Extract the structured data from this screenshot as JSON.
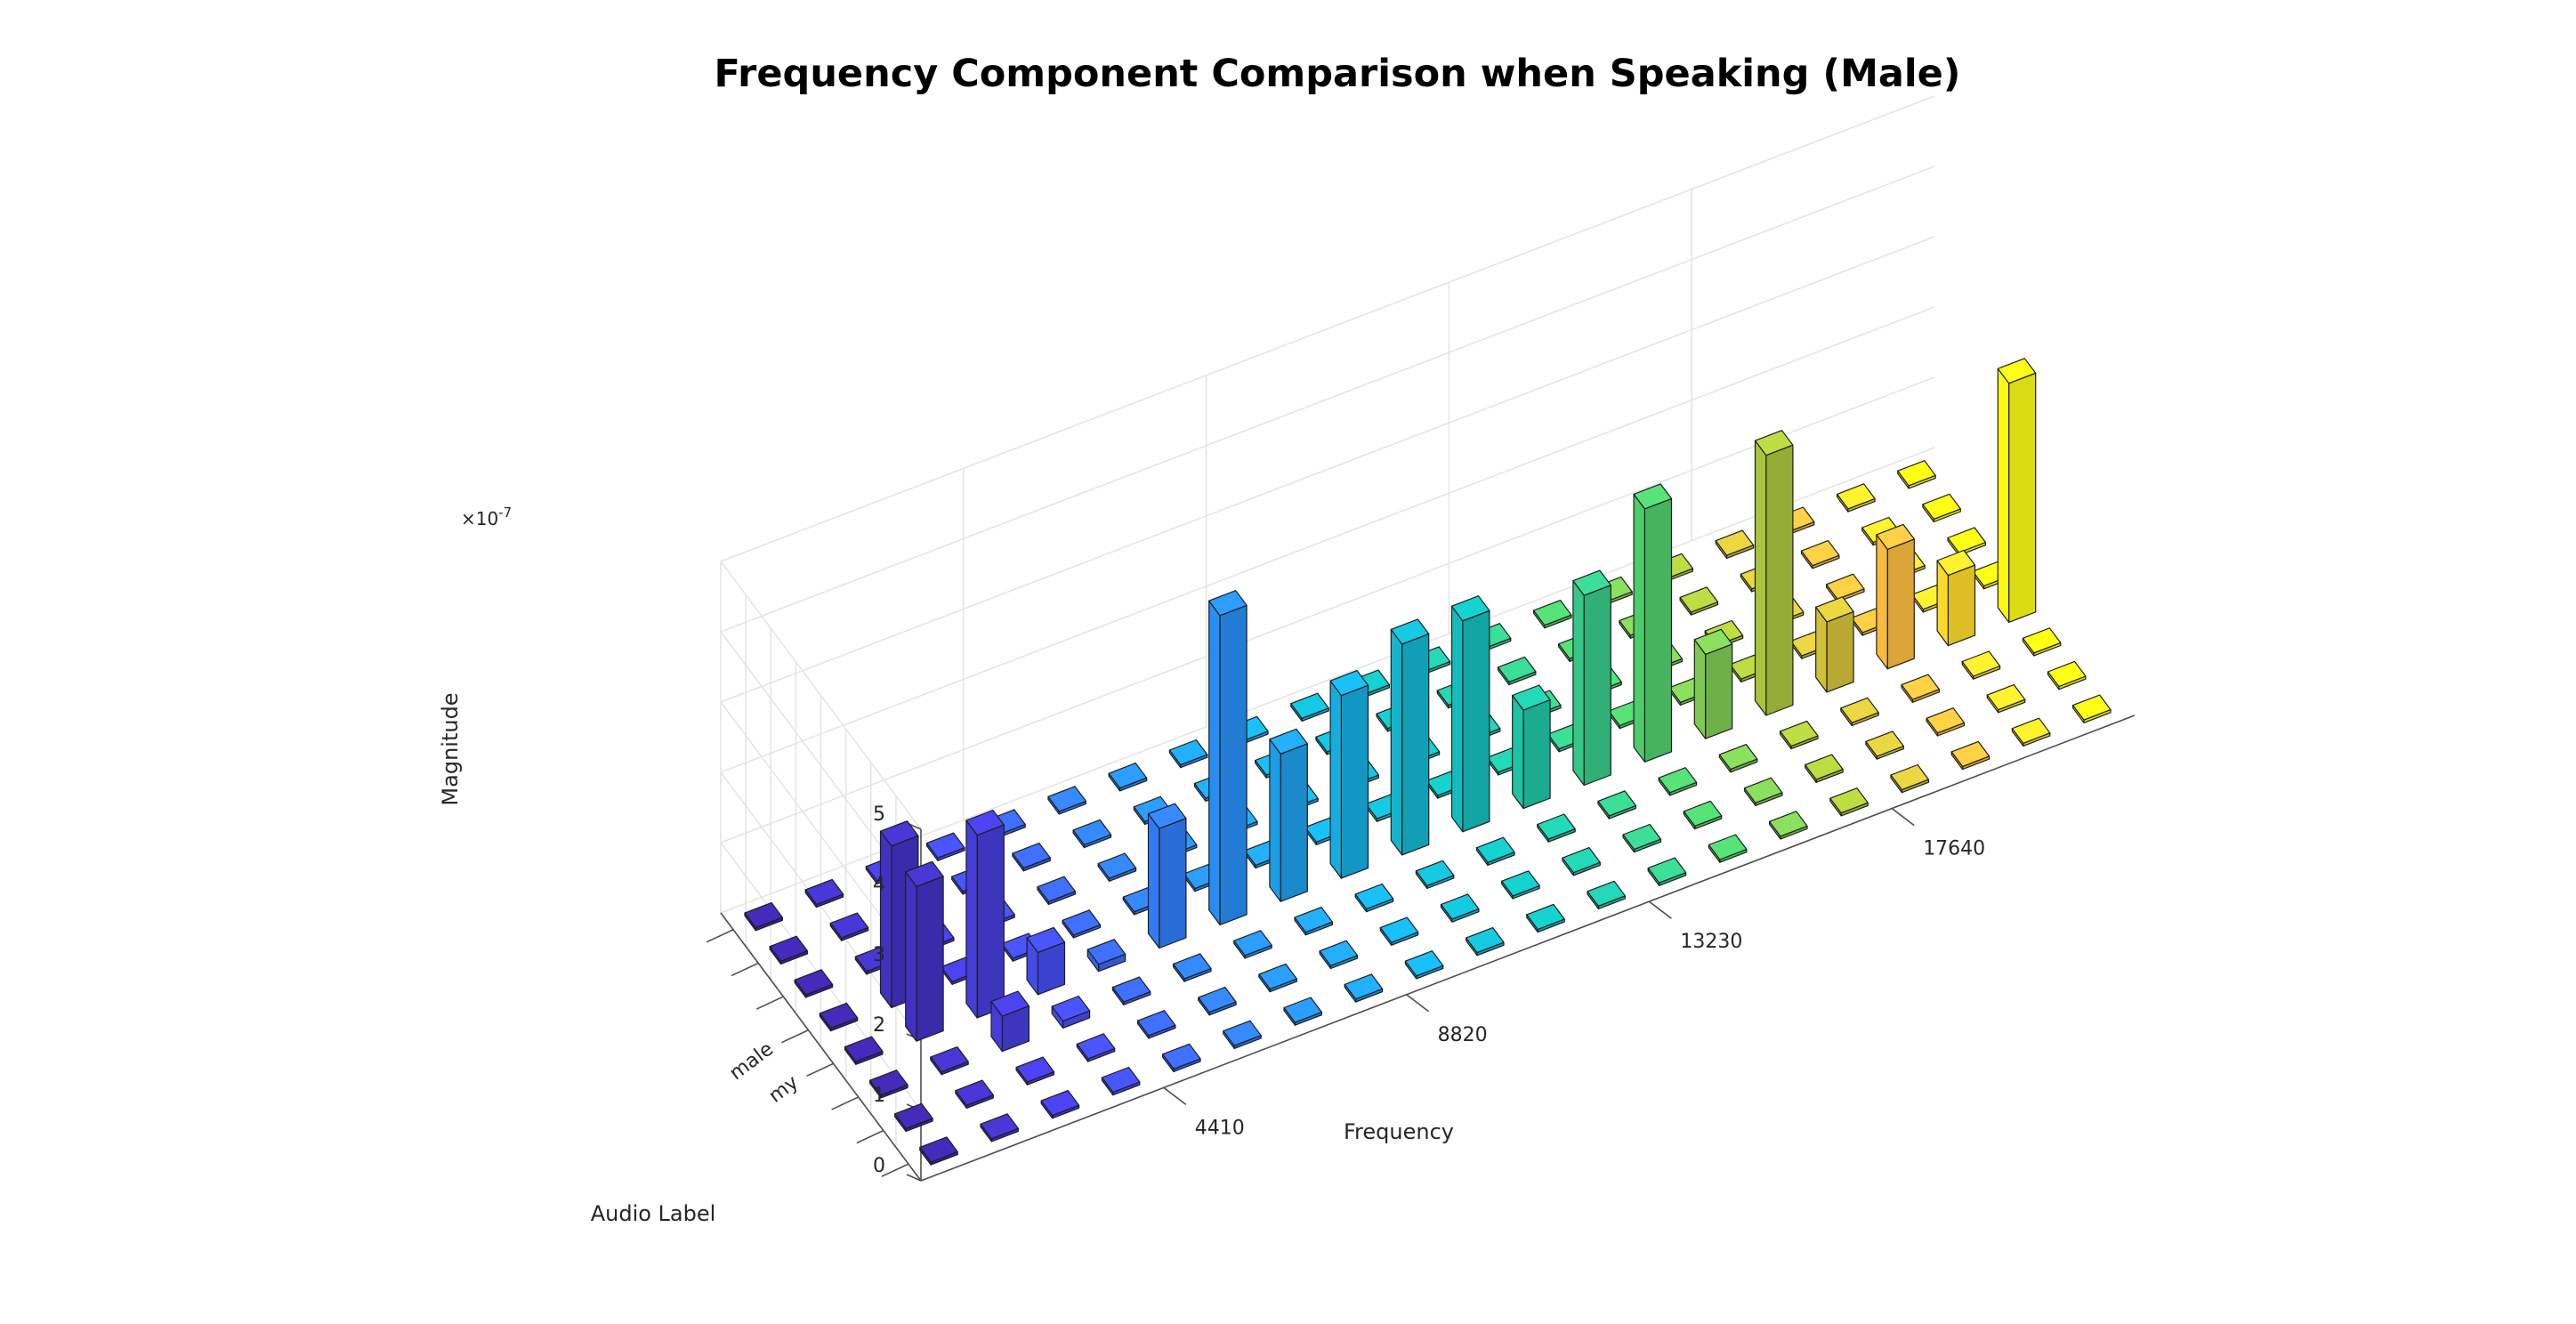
{
  "chart_data": {
    "type": "bar3",
    "title": "Frequency Component Comparison when Speaking (Male)",
    "xlabel": "Frequency",
    "ylabel": "Audio Label",
    "zlabel": "Magnitude",
    "z_exponent": "×10",
    "z_exponent_power": "-7",
    "zlim": [
      0,
      5
    ],
    "z_ticks": [
      "0",
      "1",
      "2",
      "3",
      "4",
      "5"
    ],
    "x_ticks": [
      {
        "label": "4410",
        "value": 4410
      },
      {
        "label": "8820",
        "value": 8820
      },
      {
        "label": "13230",
        "value": 13230
      },
      {
        "label": "17640",
        "value": 17640
      }
    ],
    "y_tick_labels": [
      "",
      "",
      "",
      "my",
      "male",
      "",
      "",
      ""
    ],
    "frequency_bins": [
      0,
      1102.5,
      2205,
      3307.5,
      4410,
      5512.5,
      6615,
      7717.5,
      8820,
      9922.5,
      11025,
      12127.5,
      13230,
      14332.5,
      15435,
      16537.5,
      17640,
      18742.5,
      19845,
      20947.5
    ],
    "labels_rows": 8,
    "values_e7": [
      [
        0,
        0,
        0,
        0,
        0,
        0,
        0,
        0,
        0,
        0,
        0,
        0,
        0,
        0,
        0,
        0,
        0,
        0,
        0,
        0
      ],
      [
        0,
        0,
        0,
        0,
        0,
        0,
        0,
        0,
        0,
        0,
        0,
        0,
        0,
        0,
        0,
        0,
        0,
        0,
        0,
        0
      ],
      [
        0,
        0,
        0.5,
        0.1,
        0,
        0,
        0,
        0,
        0,
        0,
        0,
        0,
        0,
        0,
        0,
        0,
        0,
        0,
        0,
        0
      ],
      [
        0,
        2.2,
        2.6,
        0.6,
        0.1,
        1.7,
        4.4,
        2.1,
        2.6,
        3.0,
        3.0,
        1.4,
        2.7,
        3.6,
        1.2,
        3.7,
        1.0,
        1.7,
        1.0,
        3.4
      ],
      [
        0,
        2.3,
        0,
        0,
        0,
        0,
        0,
        0,
        0,
        0,
        0,
        0,
        0,
        0,
        0,
        0,
        0,
        0,
        0,
        0
      ],
      [
        0,
        0,
        0,
        0,
        0,
        0,
        0,
        0,
        0,
        0,
        0,
        0,
        0,
        0,
        0,
        0,
        0,
        0,
        0,
        0
      ],
      [
        0,
        0,
        0,
        0,
        0,
        0,
        0,
        0,
        0,
        0,
        0,
        0,
        0,
        0,
        0,
        0,
        0,
        0,
        0,
        0
      ],
      [
        0,
        0,
        0,
        0,
        0,
        0,
        0,
        0,
        0,
        0,
        0,
        0,
        0,
        0,
        0,
        0,
        0,
        0,
        0,
        0
      ]
    ],
    "colormap": "parula",
    "grid": true
  }
}
